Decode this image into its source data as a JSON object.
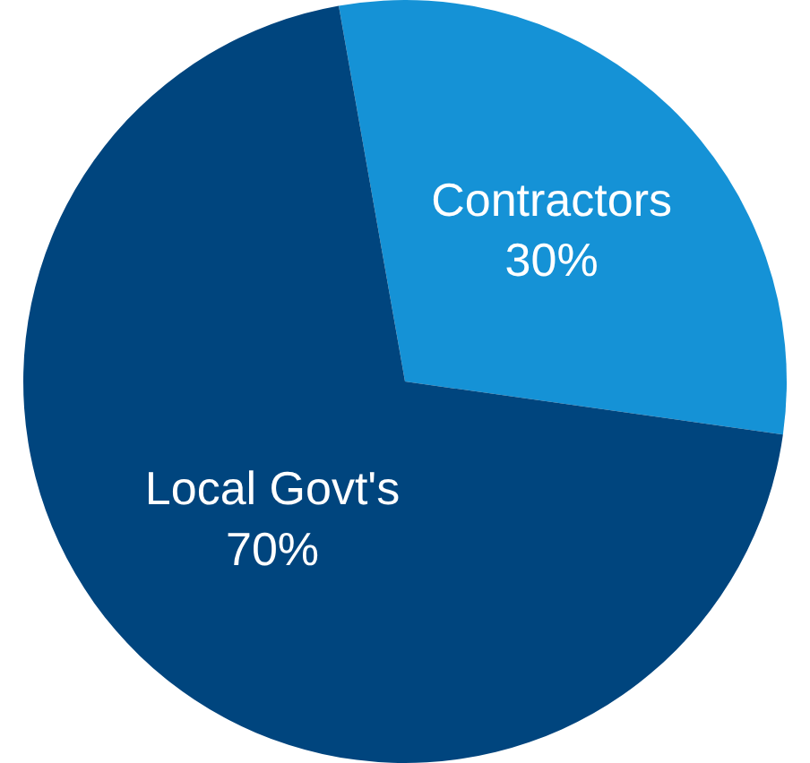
{
  "chart_data": {
    "type": "pie",
    "categories": [
      "Contractors",
      "Local Govt's"
    ],
    "values": [
      30,
      70
    ],
    "value_labels": [
      "30%",
      "70%"
    ],
    "colors": [
      "#1592d6",
      "#00457e"
    ],
    "legend": false
  }
}
